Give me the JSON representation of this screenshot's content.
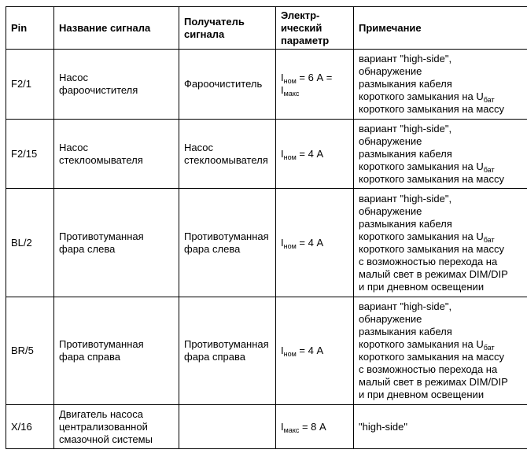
{
  "headers": [
    "Pin",
    "Название сигнала",
    "Получатель сигнала",
    "Электр-ического параметр",
    "Примечание"
  ],
  "header_lines": {
    "col3": [
      "Получатель",
      "сигнала"
    ],
    "col4": [
      "Электр-",
      "ический",
      "параметр"
    ]
  },
  "rows": [
    {
      "pin": "F2/1",
      "name": [
        "Насос",
        "фароочистителя"
      ],
      "receiver": [
        "Фароочиститель"
      ],
      "param": [
        [
          {
            "t": "I"
          },
          {
            "s": "ном"
          },
          {
            "t": " = 6 А ="
          }
        ],
        [
          {
            "t": "I"
          },
          {
            "s": "макс"
          }
        ]
      ],
      "note": [
        [
          {
            "t": "вариант  \"high-side\","
          }
        ],
        [
          {
            "t": "обнаружение"
          }
        ],
        [
          {
            "t": "размыкания кабеля"
          }
        ],
        [
          {
            "t": "короткого замыкания на U"
          },
          {
            "s": "бат"
          }
        ],
        [
          {
            "t": "короткого замыкания на массу"
          }
        ]
      ]
    },
    {
      "pin": "F2/15",
      "name": [
        "Насос",
        "стеклоомывателя"
      ],
      "receiver": [
        "Насос",
        "стеклоомывателя"
      ],
      "param": [
        [
          {
            "t": "I"
          },
          {
            "s": "ном"
          },
          {
            "t": " = 4 А"
          }
        ]
      ],
      "note": [
        [
          {
            "t": "вариант  \"high-side\","
          }
        ],
        [
          {
            "t": "обнаружение"
          }
        ],
        [
          {
            "t": "размыкания кабеля"
          }
        ],
        [
          {
            "t": "короткого замыкания на U"
          },
          {
            "s": "бат"
          }
        ],
        [
          {
            "t": "короткого замыкания на массу"
          }
        ]
      ]
    },
    {
      "pin": "BL/2",
      "name": [
        "Противотуманная",
        "фара слева"
      ],
      "receiver": [
        "Противотуманная",
        "фара слева"
      ],
      "param": [
        [
          {
            "t": "I"
          },
          {
            "s": "ном"
          },
          {
            "t": " = 4 А"
          }
        ]
      ],
      "note": [
        [
          {
            "t": "вариант  \"high-side\","
          }
        ],
        [
          {
            "t": "обнаружение"
          }
        ],
        [
          {
            "t": "размыкания кабеля"
          }
        ],
        [
          {
            "t": "короткого замыкания на U"
          },
          {
            "s": "бат"
          }
        ],
        [
          {
            "t": "короткого замыкания на массу"
          }
        ],
        [
          {
            "t": "с возможностью перехода на"
          }
        ],
        [
          {
            "t": "малый свет в режимах DIM/DIP"
          }
        ],
        [
          {
            "t": "и при дневном освещении"
          }
        ]
      ]
    },
    {
      "pin": "BR/5",
      "name": [
        "Противотуманная",
        "фара справа"
      ],
      "receiver": [
        "Противотуманная",
        "фара справа"
      ],
      "param": [
        [
          {
            "t": "I"
          },
          {
            "s": "ном"
          },
          {
            "t": " = 4 А"
          }
        ]
      ],
      "note": [
        [
          {
            "t": "вариант  \"high-side\","
          }
        ],
        [
          {
            "t": "обнаружение"
          }
        ],
        [
          {
            "t": "размыкания кабеля"
          }
        ],
        [
          {
            "t": "короткого замыкания на U"
          },
          {
            "s": "бат"
          }
        ],
        [
          {
            "t": "короткого замыкания на массу"
          }
        ],
        [
          {
            "t": "с возможностью перехода на"
          }
        ],
        [
          {
            "t": "малый свет в режимах DIM/DIP"
          }
        ],
        [
          {
            "t": "и при дневном освещении"
          }
        ]
      ]
    },
    {
      "pin": "X/16",
      "name": [
        "Двигатель насоса",
        "централизованной",
        "смазочной системы"
      ],
      "receiver": [],
      "param": [
        [
          {
            "t": "I"
          },
          {
            "s": "макс"
          },
          {
            "t": " = 8 А"
          }
        ]
      ],
      "note": [
        [
          {
            "t": "\"high-side\""
          }
        ]
      ]
    }
  ]
}
